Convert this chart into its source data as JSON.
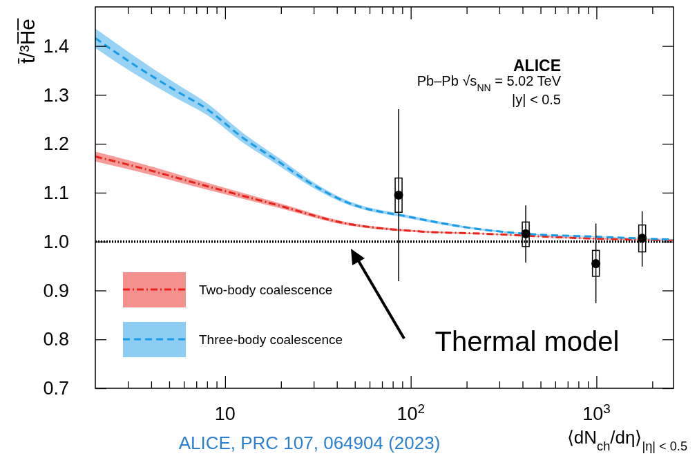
{
  "chart_data": {
    "type": "line",
    "ylabel": "t̄/³H̅e̅",
    "xlabel": "⟨dN$_{ch}$/dη⟩$_{|η| < 0.5}$",
    "annotations": [
      "ALICE",
      "Pb–Pb √s$_{NN}$ = 5.02 TeV",
      "|y| < 0.5",
      "ALICE, PRC 107, 064904 (2023)",
      "Thermal model"
    ],
    "log": "x",
    "xlim": [
      2,
      2600
    ],
    "xticks": [
      {
        "value": 3,
        "label": null
      },
      {
        "value": 4,
        "label": null
      },
      {
        "value": 5,
        "label": null
      },
      {
        "value": 6,
        "label": null
      },
      {
        "value": 7,
        "label": null
      },
      {
        "value": 8,
        "label": null
      },
      {
        "value": 9,
        "label": null
      },
      10,
      {
        "value": 20,
        "label": null
      },
      {
        "value": 30,
        "label": null
      },
      {
        "value": 40,
        "label": null
      },
      {
        "value": 50,
        "label": null
      },
      {
        "value": 60,
        "label": null
      },
      {
        "value": 70,
        "label": null
      },
      {
        "value": 80,
        "label": null
      },
      {
        "value": 90,
        "label": null
      },
      {
        "value": 100,
        "label": "10$^{2}$"
      },
      {
        "value": 200,
        "label": null
      },
      {
        "value": 300,
        "label": null
      },
      {
        "value": 400,
        "label": null
      },
      {
        "value": 500,
        "label": null
      },
      {
        "value": 600,
        "label": null
      },
      {
        "value": 700,
        "label": null
      },
      {
        "value": 800,
        "label": null
      },
      {
        "value": 900,
        "label": null
      },
      {
        "value": 1000,
        "label": "10$^{3}$"
      },
      {
        "value": 2000,
        "label": null
      }
    ],
    "ylim": [
      0.7,
      1.48
    ],
    "yticks": [
      0.7,
      0.8,
      0.9,
      {
        "value": 1.0,
        "label": "1.0"
      },
      1.1,
      1.2,
      1.3,
      1.4
    ],
    "legend": "bottom left",
    "ref_lines": [
      {
        "axis": "y",
        "value": 1.0,
        "color": "#000000",
        "line_style": "dotted"
      }
    ],
    "series": [
      {
        "name": "Two-body coalescence",
        "color": "#e8231c",
        "line_style": "dashdot",
        "x": [
          2,
          3.41,
          8.05,
          19,
          44.9,
          100,
          250,
          1000,
          2600
        ],
        "values": [
          1.174,
          1.152,
          1.113,
          1.075,
          1.037,
          1.022,
          1.016,
          1.006,
          1.003
        ],
        "lower": [
          1.164,
          1.143,
          1.106,
          1.07,
          1.034,
          1.02,
          1.015,
          1.005,
          1.002
        ],
        "upper": [
          1.184,
          1.161,
          1.12,
          1.08,
          1.04,
          1.024,
          1.017,
          1.007,
          1.004
        ]
      },
      {
        "name": "Three-body coalescence",
        "color": "#1a9be6",
        "line_style": "dashed",
        "x": [
          2,
          3.32,
          5.24,
          8.05,
          12.4,
          19,
          29.2,
          44.9,
          100,
          250,
          416,
          1000,
          2600
        ],
        "values": [
          1.416,
          1.359,
          1.312,
          1.27,
          1.213,
          1.166,
          1.118,
          1.081,
          1.05,
          1.024,
          1.016,
          1.01,
          1.004
        ],
        "lower": [
          1.396,
          1.341,
          1.297,
          1.258,
          1.203,
          1.158,
          1.112,
          1.077,
          1.047,
          1.022,
          1.015,
          1.009,
          1.003
        ],
        "upper": [
          1.436,
          1.377,
          1.327,
          1.282,
          1.223,
          1.174,
          1.124,
          1.085,
          1.053,
          1.026,
          1.017,
          1.011,
          1.005
        ]
      },
      {
        "type": "bar",
        "color": "#000000",
        "x": [
          86,
          416,
          993,
          1763
        ],
        "base": [
          1.06,
          0.99,
          0.929,
          0.979
        ],
        "values": [
          0.07,
          0.05,
          0.053,
          0.055
        ]
      },
      {
        "type": "scatter",
        "color": "#000000",
        "marker": "circle",
        "x": [
          86,
          416,
          993,
          1763
        ],
        "values": [
          1.095,
          1.016,
          0.955,
          1.007
        ],
        "errors": [
          [
            0.919,
            1.271
          ],
          [
            0.957,
            1.074
          ],
          [
            0.874,
            1.037
          ],
          [
            0.949,
            1.062
          ]
        ]
      }
    ]
  }
}
